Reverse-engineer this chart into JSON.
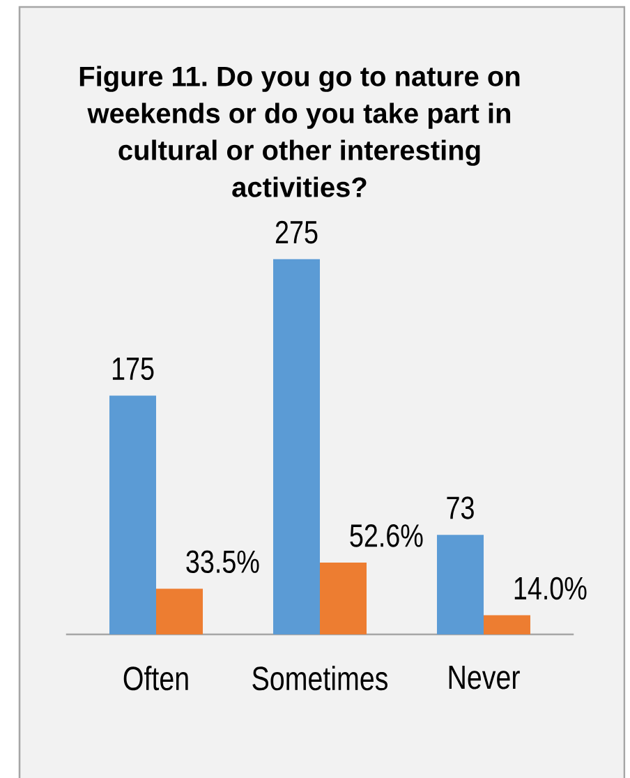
{
  "chart_data": {
    "type": "bar",
    "title": "Figure 11. Do you go to nature on weekends or do you take part in cultural or other interesting activities?",
    "categories": [
      "Often",
      "Sometimes",
      "Never"
    ],
    "series": [
      {
        "color": "#5b9bd5",
        "values": [
          175,
          275,
          73
        ],
        "value_labels": [
          "175",
          "275",
          "73"
        ]
      },
      {
        "color": "#ed7d31",
        "values": [
          33.5,
          52.6,
          14.0
        ],
        "value_labels": [
          "33.5%",
          "52.6%",
          "14.0%"
        ]
      }
    ]
  }
}
